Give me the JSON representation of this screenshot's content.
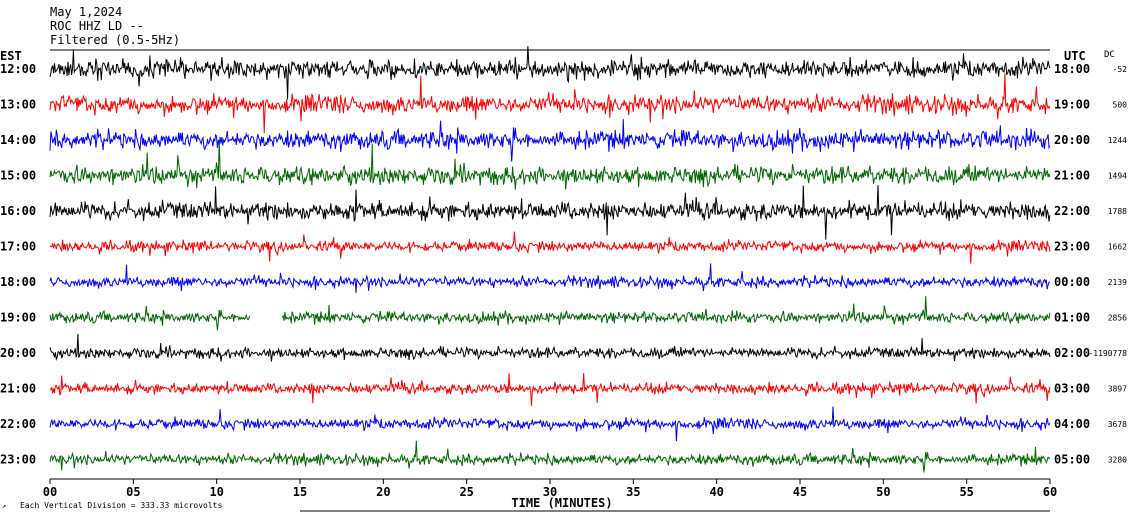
{
  "header": {
    "date": "May 1,2024",
    "station": "ROC HHZ LD --",
    "filter": "Filtered (0.5-5Hz)"
  },
  "chart_data": {
    "type": "line",
    "title": "",
    "xlabel": "TIME (MINUTES)",
    "ylabel": "",
    "xlim": [
      0,
      60
    ],
    "x_ticks": [
      "00",
      "05",
      "10",
      "15",
      "20",
      "25",
      "30",
      "35",
      "40",
      "45",
      "50",
      "55",
      "60"
    ],
    "left_axis_label": "EST",
    "right_axis_label": "UTC",
    "dc_label": "DC",
    "rows": [
      {
        "est": "12:00",
        "utc": "18:00",
        "dc": "-52",
        "color": "#000000"
      },
      {
        "est": "13:00",
        "utc": "19:00",
        "dc": "500",
        "color": "#ff0000"
      },
      {
        "est": "14:00",
        "utc": "20:00",
        "dc": "1244",
        "color": "#0000ff"
      },
      {
        "est": "15:00",
        "utc": "21:00",
        "dc": "1494",
        "color": "#006600"
      },
      {
        "est": "16:00",
        "utc": "22:00",
        "dc": "1788",
        "color": "#000000"
      },
      {
        "est": "17:00",
        "utc": "23:00",
        "dc": "1662",
        "color": "#ff0000"
      },
      {
        "est": "18:00",
        "utc": "00:00",
        "dc": "2139",
        "color": "#0000ff"
      },
      {
        "est": "19:00",
        "utc": "01:00",
        "dc": "2856",
        "color": "#006600"
      },
      {
        "est": "20:00",
        "utc": "02:00",
        "dc": "-1190778",
        "color": "#000000"
      },
      {
        "est": "21:00",
        "utc": "03:00",
        "dc": "3897",
        "color": "#ff0000"
      },
      {
        "est": "22:00",
        "utc": "04:00",
        "dc": "3678",
        "color": "#0000ff"
      },
      {
        "est": "23:00",
        "utc": "05:00",
        "dc": "3280",
        "color": "#006600"
      }
    ],
    "scale_note": "Each Vertical Division =  333.33 microvolts"
  }
}
